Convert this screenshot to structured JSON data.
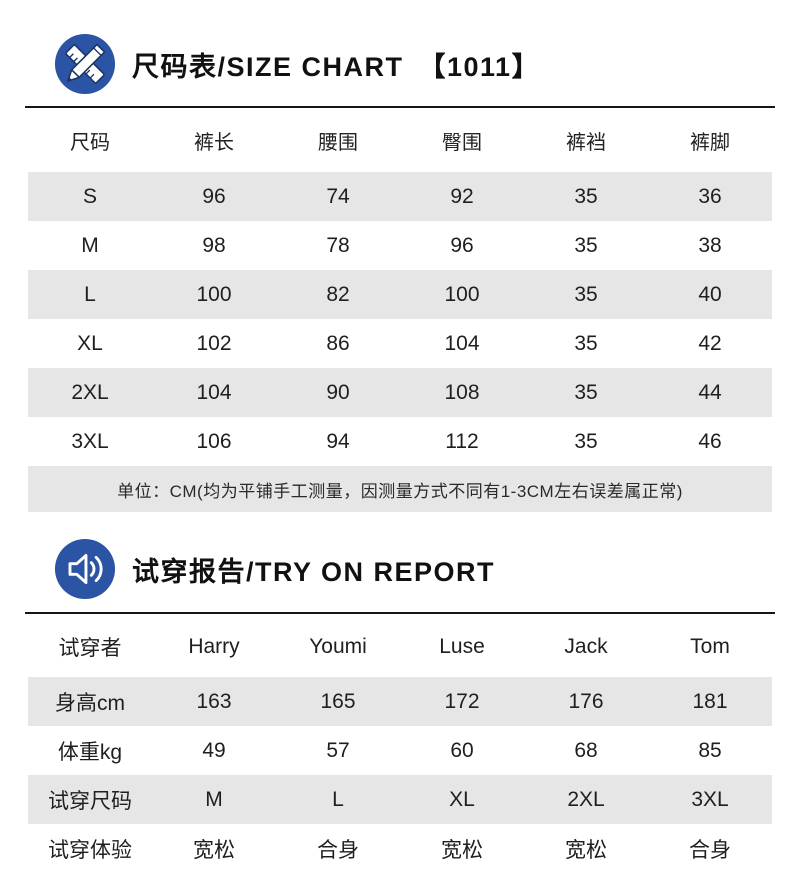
{
  "size_chart": {
    "title": "尺码表/SIZE CHART　【1011】",
    "icon": "pencil-ruler-icon",
    "columns": [
      "尺码",
      "裤长",
      "腰围",
      "臀围",
      "裤裆",
      "裤脚"
    ],
    "rows": [
      [
        "S",
        "96",
        "74",
        "92",
        "35",
        "36"
      ],
      [
        "M",
        "98",
        "78",
        "96",
        "35",
        "38"
      ],
      [
        "L",
        "100",
        "82",
        "100",
        "35",
        "40"
      ],
      [
        "XL",
        "102",
        "86",
        "104",
        "35",
        "42"
      ],
      [
        "2XL",
        "104",
        "90",
        "108",
        "35",
        "44"
      ],
      [
        "3XL",
        "106",
        "94",
        "112",
        "35",
        "46"
      ]
    ],
    "note": "单位：CM(均为平铺手工测量，因测量方式不同有1-3CM左右误差属正常)"
  },
  "try_on": {
    "title": "试穿报告/TRY ON REPORT",
    "icon": "speaker-icon",
    "rows": [
      [
        "试穿者",
        "Harry",
        "Youmi",
        "Luse",
        "Jack",
        "Tom"
      ],
      [
        "身高cm",
        "163",
        "165",
        "172",
        "176",
        "181"
      ],
      [
        "体重kg",
        "49",
        "57",
        "60",
        "68",
        "85"
      ],
      [
        "试穿尺码",
        "M",
        "L",
        "XL",
        "2XL",
        "3XL"
      ],
      [
        "试穿体验",
        "宽松",
        "合身",
        "宽松",
        "宽松",
        "合身"
      ]
    ]
  },
  "colors": {
    "accent_blue": "#2b55a4",
    "stripe_gray": "#e6e6e6",
    "divider_dark": "#161616"
  }
}
